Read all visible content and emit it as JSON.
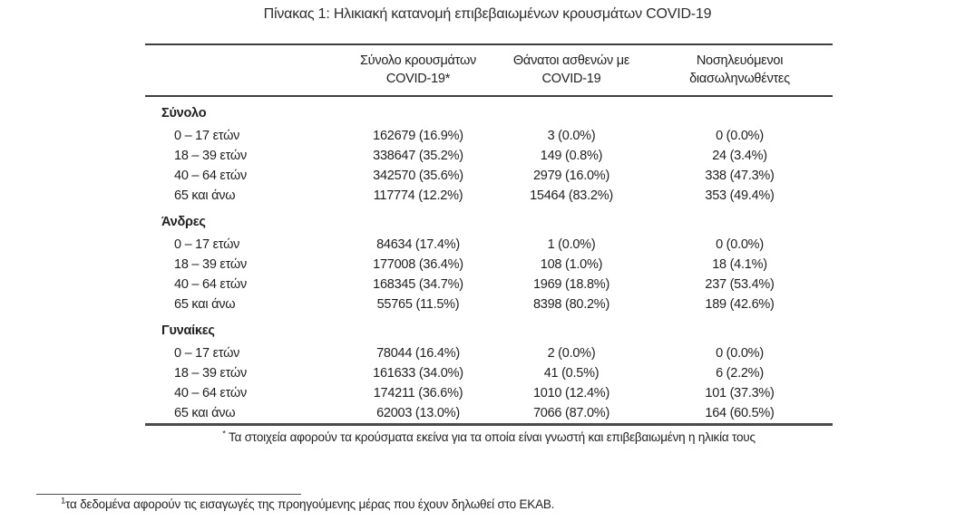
{
  "title": "Πίνακας 1: Ηλικιακή κατανομή επιβεβαιωμένων κρουσμάτων COVID-19",
  "table": {
    "headers": {
      "cases": {
        "line1": "Σύνολο κρουσμάτων",
        "line2": "COVID-19*"
      },
      "deaths": {
        "line1": "Θάνατοι ασθενών με",
        "line2": "COVID-19"
      },
      "intubated": {
        "line1": "Νοσηλευόμενοι",
        "line2": "διασωληνωθέντες"
      }
    },
    "sections": [
      {
        "label": "Σύνολο",
        "rows": [
          {
            "label": "0 – 17 ετών",
            "cases": "162679 (16.9%)",
            "deaths": "3 (0.0%)",
            "intubated": "0 (0.0%)"
          },
          {
            "label": "18 – 39 ετών",
            "cases": "338647 (35.2%)",
            "deaths": "149 (0.8%)",
            "intubated": "24 (3.4%)"
          },
          {
            "label": "40 – 64 ετών",
            "cases": "342570 (35.6%)",
            "deaths": "2979 (16.0%)",
            "intubated": "338 (47.3%)"
          },
          {
            "label": "65 και άνω",
            "cases": "117774 (12.2%)",
            "deaths": "15464 (83.2%)",
            "intubated": "353 (49.4%)"
          }
        ]
      },
      {
        "label": "Άνδρες",
        "rows": [
          {
            "label": "0 – 17 ετών",
            "cases": "84634 (17.4%)",
            "deaths": "1 (0.0%)",
            "intubated": "0 (0.0%)"
          },
          {
            "label": "18 – 39 ετών",
            "cases": "177008 (36.4%)",
            "deaths": "108 (1.0%)",
            "intubated": "18 (4.1%)"
          },
          {
            "label": "40 – 64 ετών",
            "cases": "168345 (34.7%)",
            "deaths": "1969 (18.8%)",
            "intubated": "237 (53.4%)"
          },
          {
            "label": "65 και άνω",
            "cases": "55765 (11.5%)",
            "deaths": "8398 (80.2%)",
            "intubated": "189 (42.6%)"
          }
        ]
      },
      {
        "label": "Γυναίκες",
        "rows": [
          {
            "label": "0 – 17 ετών",
            "cases": "78044 (16.4%)",
            "deaths": "2 (0.0%)",
            "intubated": "0 (0.0%)"
          },
          {
            "label": "18 – 39 ετών",
            "cases": "161633 (34.0%)",
            "deaths": "41 (0.5%)",
            "intubated": "6 (2.2%)"
          },
          {
            "label": "40 – 64 ετών",
            "cases": "174211 (36.6%)",
            "deaths": "1010 (12.4%)",
            "intubated": "101 (37.3%)"
          },
          {
            "label": "65 και άνω",
            "cases": "62003 (13.0%)",
            "deaths": "7066 (87.0%)",
            "intubated": "164 (60.5%)"
          }
        ]
      }
    ],
    "footnote": {
      "marker": "*",
      "text": "Τα στοιχεία αφορούν τα κρούσματα εκείνα για τα οποία είναι γνωστή και επιβεβαιωμένη η ηλικία τους"
    }
  },
  "page_footnote": {
    "marker": "1",
    "text": "τα δεδομένα αφορούν τις εισαγωγές της προηγούμενης μέρας που έχουν δηλωθεί στο ΕΚΑΒ."
  }
}
